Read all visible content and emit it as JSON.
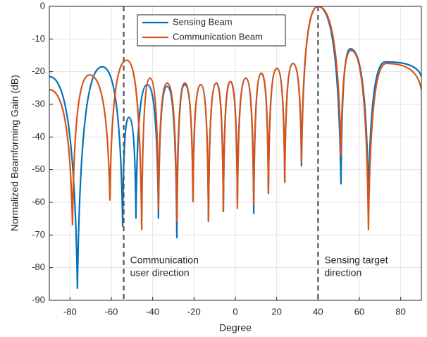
{
  "chart_data": {
    "type": "line",
    "xlabel": "Degree",
    "ylabel": "Normalized Beamforming Gain (dB)",
    "xlim": [
      -90,
      90
    ],
    "xticks": [
      -80,
      -60,
      -40,
      -20,
      0,
      20,
      40,
      60,
      80
    ],
    "ylim": [
      -90,
      0
    ],
    "yticks": [
      -90,
      -80,
      -70,
      -60,
      -50,
      -40,
      -30,
      -20,
      -10,
      0
    ],
    "grid": true,
    "legend": "top",
    "series": [
      {
        "name": "Sensing Beam",
        "color": "#0072BD",
        "x": [
          -90,
          -76.4,
          -64.4,
          -54.5,
          -51.5,
          -48.1,
          -42.6,
          -37.2,
          -33,
          -28.3,
          -24.5,
          -20.5,
          -16.7,
          -13,
          -9.2,
          -5.8,
          -2.4,
          1,
          5.1,
          8.9,
          12.6,
          16,
          20.1,
          23.9,
          27.9,
          32,
          40,
          51.1,
          55.6,
          64.4,
          72.6,
          90
        ],
        "values": [
          -21.5,
          -86.5,
          -18.5,
          -67.5,
          -34,
          -65,
          -24,
          -65,
          -24.5,
          -71,
          -24,
          -59,
          -24,
          -66,
          -23.5,
          -63,
          -23,
          -60,
          -22,
          -63.5,
          -20.5,
          -57,
          -19,
          -54,
          -17.5,
          -49,
          0,
          -54.5,
          -13,
          -60,
          -17,
          -21.5
        ]
      },
      {
        "name": "Communication Beam",
        "color": "#D95319",
        "x": [
          -90,
          -78.8,
          -70.6,
          -60.7,
          -52.5,
          -45.3,
          -41.3,
          -37.2,
          -33,
          -28.3,
          -24.5,
          -20.5,
          -16.7,
          -13,
          -9.2,
          -5.8,
          -2.4,
          1,
          5.1,
          8.9,
          12.6,
          16,
          20.1,
          23.9,
          27.9,
          32,
          40,
          51.1,
          56,
          64.4,
          73,
          90
        ],
        "values": [
          -25.5,
          -67,
          -21,
          -59.5,
          -16.5,
          -68.5,
          -22,
          -62.5,
          -23.5,
          -66,
          -23.5,
          -60,
          -24,
          -66,
          -23.5,
          -63,
          -23,
          -62,
          -22,
          -61,
          -20.5,
          -57.5,
          -19,
          -54,
          -17.5,
          -48,
          0,
          -46,
          -13.5,
          -68.5,
          -17.5,
          -25.5
        ]
      }
    ],
    "vlines": [
      {
        "x": -54,
        "label": [
          "Communication",
          "user direction"
        ]
      },
      {
        "x": 40,
        "label": [
          "Sensing target",
          "direction"
        ]
      }
    ]
  }
}
